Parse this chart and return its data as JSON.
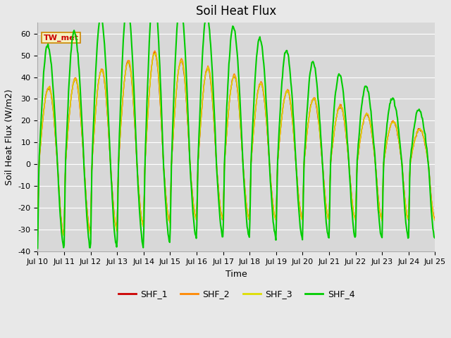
{
  "title": "Soil Heat Flux",
  "xlabel": "Time",
  "ylabel": "Soil Heat Flux (W/m2)",
  "ylim": [
    -40,
    65
  ],
  "yticks": [
    -40,
    -30,
    -20,
    -10,
    0,
    10,
    20,
    30,
    40,
    50,
    60
  ],
  "xtick_labels": [
    "Jul 10",
    "Jul 11",
    "Jul 12",
    "Jul 13",
    "Jul 14",
    "Jul 15",
    "Jul 16",
    "Jul 17",
    "Jul 18",
    "Jul 19",
    "Jul 20",
    "Jul 21",
    "Jul 22",
    "Jul 23",
    "Jul 24",
    "Jul 25"
  ],
  "legend_label": "TW_met",
  "series_labels": [
    "SHF_1",
    "SHF_2",
    "SHF_3",
    "SHF_4"
  ],
  "series_colors": [
    "#cc0000",
    "#ff8800",
    "#dddd00",
    "#00cc00"
  ],
  "series_linewidths": [
    1.0,
    1.0,
    1.0,
    1.5
  ],
  "background_color": "#e8e8e8",
  "plot_bg_color": "#d8d8d8",
  "title_fontsize": 12,
  "axis_fontsize": 9,
  "tick_fontsize": 8,
  "figsize": [
    6.4,
    4.8
  ],
  "dpi": 100
}
